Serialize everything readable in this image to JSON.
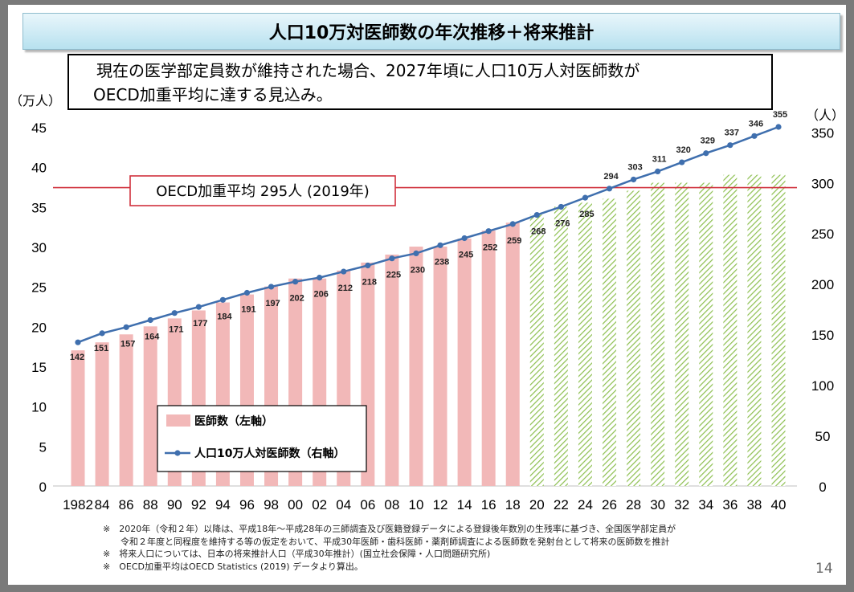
{
  "title": "人口10万対医師数の年次推移＋将来推計",
  "subtitle": {
    "line1": "現在の医学部定員数が維持された場合、2027年頃に人口10万人対医師数が",
    "line2": "OECD加重平均に達する見込み。"
  },
  "colors": {
    "bar": "#f2b8b8",
    "future_bar": "#8cbf4f",
    "line": "#3f6fae",
    "reference": "#d0313d"
  },
  "chart_data": {
    "type": "bar",
    "x_ticks": [
      "1982",
      "84",
      "86",
      "88",
      "90",
      "92",
      "94",
      "96",
      "98",
      "00",
      "02",
      "04",
      "06",
      "08",
      "10",
      "12",
      "14",
      "16",
      "18",
      "20",
      "22",
      "24",
      "26",
      "28",
      "30",
      "32",
      "34",
      "36",
      "38",
      "40"
    ],
    "left_axis": {
      "unit": "（万人）",
      "ylim": [
        0,
        45
      ],
      "ticks": [
        "0",
        "5",
        "10",
        "15",
        "20",
        "25",
        "30",
        "35",
        "40",
        "45"
      ]
    },
    "right_axis": {
      "unit": "（人）",
      "ylim": [
        0,
        355
      ],
      "ticks": [
        "0",
        "50",
        "100",
        "150",
        "200",
        "250",
        "300",
        "350"
      ]
    },
    "series": [
      {
        "name": "医師数（左軸）",
        "kind": "bar",
        "values": [
          17,
          18,
          19,
          20,
          21,
          22,
          23,
          24,
          25,
          26,
          26,
          27,
          28,
          29,
          30,
          30,
          31,
          32,
          33,
          34,
          35,
          35.5,
          36,
          37,
          38,
          38,
          38,
          39,
          39,
          39
        ],
        "projected_from": "20"
      },
      {
        "name": "人口10万人対医師数（右軸）",
        "kind": "line",
        "values": [
          142,
          151,
          157,
          164,
          171,
          177,
          184,
          191,
          197,
          202,
          206,
          212,
          218,
          225,
          230,
          238,
          245,
          252,
          259,
          268,
          276,
          285,
          294,
          303,
          311,
          320,
          329,
          337,
          346,
          355
        ],
        "labels": [
          "142",
          "151",
          "157",
          "164",
          "171",
          "177",
          "184",
          "191",
          "197",
          "202",
          "206",
          "212",
          "218",
          "225",
          "230",
          "238",
          "245",
          "252",
          "259",
          "268",
          "276",
          "285",
          "294",
          "303",
          "311",
          "320",
          "329",
          "337",
          "346",
          "355"
        ]
      }
    ],
    "reference_line": {
      "label": "OECD加重平均 295人 (2019年)",
      "value": 295,
      "axis": "right"
    },
    "legend": {
      "placement": "inside-left",
      "bar_label": "医師数（左軸）",
      "line_label": "人口10万人対医師数（右軸）"
    }
  },
  "footnotes": [
    "※　2020年（令和２年）以降は、平成18年～平成28年の三師調査及び医籍登録データによる登録後年数別の生残率に基づき、全国医学部定員が",
    "　　令和２年度と同程度を維持する等の仮定をおいて、平成30年医師・歯科医師・薬剤師調査による医師数を発射台として将来の医師数を推計",
    "※　将来人口については、日本の将来推計人口（平成30年推計）(国立社会保障・人口問題研究所)",
    "※　OECD加重平均はOECD Statistics (2019) データより算出。"
  ],
  "page_number": "14"
}
